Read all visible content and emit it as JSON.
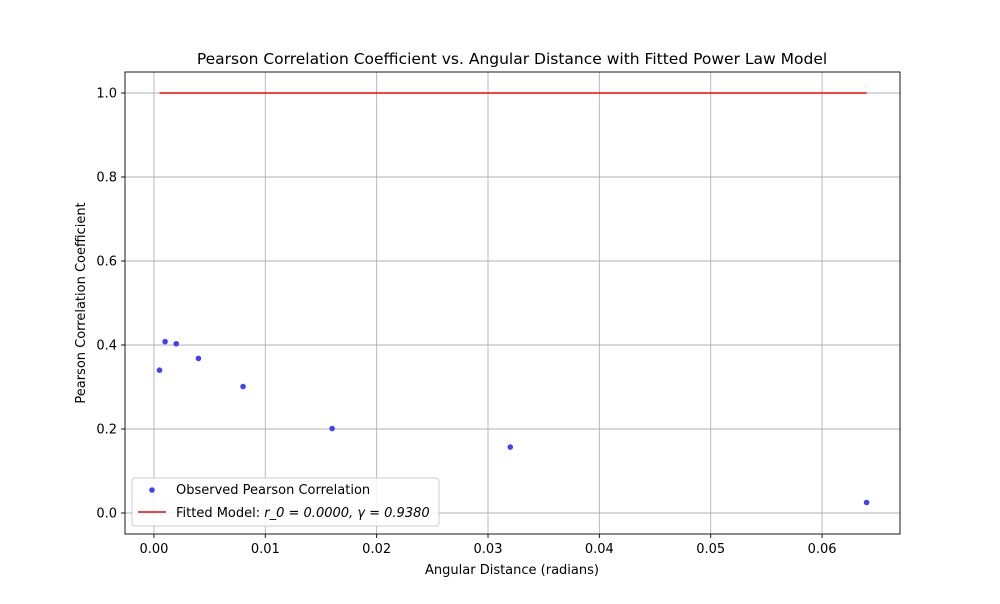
{
  "chart_data": {
    "type": "scatter",
    "title": "Pearson Correlation Coefficient vs. Angular Distance with Fitted Power Law Model",
    "xlabel": "Angular Distance (radians)",
    "ylabel": "Pearson Correlation Coefficient",
    "xlim": [
      -0.0026,
      0.067
    ],
    "ylim": [
      -0.05,
      1.05
    ],
    "xticks": [
      0.0,
      0.01,
      0.02,
      0.03,
      0.04,
      0.05,
      0.06
    ],
    "xtick_labels": [
      "0.00",
      "0.01",
      "0.02",
      "0.03",
      "0.04",
      "0.05",
      "0.06"
    ],
    "yticks": [
      0.0,
      0.2,
      0.4,
      0.6,
      0.8,
      1.0
    ],
    "ytick_labels": [
      "0.0",
      "0.2",
      "0.4",
      "0.6",
      "0.8",
      "1.0"
    ],
    "grid": true,
    "legend_position": "lower-left",
    "series": [
      {
        "name": "Observed Pearson Correlation",
        "kind": "scatter",
        "color": "#4040ff",
        "x": [
          0.0005,
          0.001,
          0.002,
          0.004,
          0.008,
          0.016,
          0.032,
          0.064
        ],
        "y": [
          0.34,
          0.408,
          0.403,
          0.368,
          0.301,
          0.201,
          0.157,
          0.025
        ]
      },
      {
        "name": "Fitted Model",
        "kind": "line",
        "color": "#ff0000",
        "legend_label_prefix": "Fitted Model: ",
        "legend_label_math": "r_0 = 0.0000, γ = 0.9380",
        "x": [
          0.0005,
          0.064
        ],
        "y": [
          1.0,
          1.0
        ]
      }
    ]
  }
}
